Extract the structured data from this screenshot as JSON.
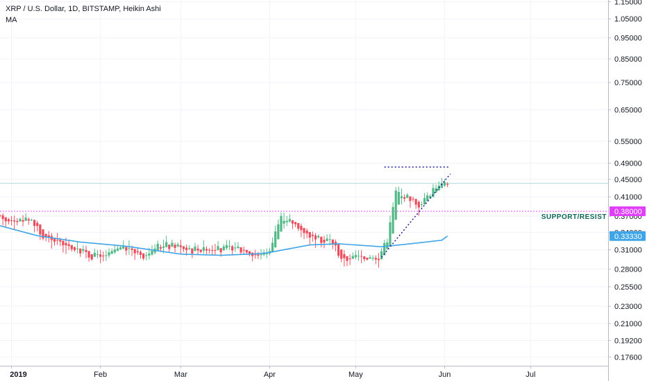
{
  "header": {
    "title": "XRP / U.S. Dollar, 1D, BITSTAMP, Heikin Ashi",
    "indicator": "MA"
  },
  "colors": {
    "up": "#53b987",
    "down": "#eb4d5c",
    "ma": "#3fa5e6",
    "support": "#e040fb",
    "last_price": "#b2d8d8",
    "triangle": "#1f1a9e",
    "grid": "#f0f3fa",
    "axis_text": "#131722",
    "annotation_text": "#0e6655"
  },
  "chart_data": {
    "type": "candlestick",
    "title": "XRP / U.S. Dollar, 1D, BITSTAMP, Heikin Ashi",
    "indicator": "MA",
    "y_scale": "log",
    "ylim": [
      0.168,
      1.16
    ],
    "xlim": [
      "2018-12-28",
      "2019-07-28"
    ],
    "y_ticks": [
      "1.15000",
      "1.05000",
      "0.95000",
      "0.85000",
      "0.75000",
      "0.65000",
      "0.55000",
      "0.49000",
      "0.45000",
      "0.41000",
      "0.37000",
      "0.34000",
      "0.31000",
      "0.28000",
      "0.25500",
      "0.23000",
      "0.21000",
      "0.19200",
      "0.17600"
    ],
    "x_ticks": [
      {
        "label": "2019",
        "date": "2019-01-01"
      },
      {
        "label": "Feb",
        "date": "2019-02-01"
      },
      {
        "label": "Mar",
        "date": "2019-03-01"
      },
      {
        "label": "Apr",
        "date": "2019-04-01"
      },
      {
        "label": "May",
        "date": "2019-05-01"
      },
      {
        "label": "Jun",
        "date": "2019-06-01"
      },
      {
        "label": "Jul",
        "date": "2019-07-01"
      }
    ],
    "anchors": [
      {
        "date": "2018-12-28",
        "price": 0.365
      },
      {
        "date": "2019-01-03",
        "price": 0.362
      },
      {
        "date": "2019-01-08",
        "price": 0.365
      },
      {
        "date": "2019-01-11",
        "price": 0.335
      },
      {
        "date": "2019-01-20",
        "price": 0.318
      },
      {
        "date": "2019-01-28",
        "price": 0.303
      },
      {
        "date": "2019-02-02",
        "price": 0.298
      },
      {
        "date": "2019-02-09",
        "price": 0.313
      },
      {
        "date": "2019-02-16",
        "price": 0.302
      },
      {
        "date": "2019-02-24",
        "price": 0.32
      },
      {
        "date": "2019-03-05",
        "price": 0.312
      },
      {
        "date": "2019-03-15",
        "price": 0.312
      },
      {
        "date": "2019-03-24",
        "price": 0.311
      },
      {
        "date": "2019-03-28",
        "price": 0.3
      },
      {
        "date": "2019-04-01",
        "price": 0.31
      },
      {
        "date": "2019-04-05",
        "price": 0.365
      },
      {
        "date": "2019-04-10",
        "price": 0.355
      },
      {
        "date": "2019-04-16",
        "price": 0.33
      },
      {
        "date": "2019-04-19",
        "price": 0.325
      },
      {
        "date": "2019-04-23",
        "price": 0.325
      },
      {
        "date": "2019-04-26",
        "price": 0.295
      },
      {
        "date": "2019-05-01",
        "price": 0.298
      },
      {
        "date": "2019-05-06",
        "price": 0.3
      },
      {
        "date": "2019-05-09",
        "price": 0.297
      },
      {
        "date": "2019-05-12",
        "price": 0.33
      },
      {
        "date": "2019-05-15",
        "price": 0.42
      },
      {
        "date": "2019-05-19",
        "price": 0.41
      },
      {
        "date": "2019-05-23",
        "price": 0.39
      },
      {
        "date": "2019-05-27",
        "price": 0.42
      },
      {
        "date": "2019-05-30",
        "price": 0.44
      },
      {
        "date": "2019-06-02",
        "price": 0.445
      }
    ],
    "series": [
      {
        "name": "MA",
        "type": "line",
        "points": [
          {
            "date": "2018-12-28",
            "value": 0.352
          },
          {
            "date": "2019-01-10",
            "value": 0.334
          },
          {
            "date": "2019-01-25",
            "value": 0.323
          },
          {
            "date": "2019-02-10",
            "value": 0.316
          },
          {
            "date": "2019-03-01",
            "value": 0.303
          },
          {
            "date": "2019-03-15",
            "value": 0.301
          },
          {
            "date": "2019-03-30",
            "value": 0.304
          },
          {
            "date": "2019-04-15",
            "value": 0.318
          },
          {
            "date": "2019-04-25",
            "value": 0.32
          },
          {
            "date": "2019-05-10",
            "value": 0.315
          },
          {
            "date": "2019-05-20",
            "value": 0.32
          },
          {
            "date": "2019-05-31",
            "value": 0.326
          },
          {
            "date": "2019-06-02",
            "value": 0.3333
          }
        ]
      }
    ],
    "horizontal_lines": [
      {
        "name": "SUPPORT/RESIST",
        "value": 0.38,
        "label": "0.38000"
      },
      {
        "name": "last price",
        "value": 0.4405
      }
    ],
    "price_labels": [
      {
        "value": 0.38,
        "label": "0.38000"
      },
      {
        "value": 0.3333,
        "label": "0.33330"
      }
    ],
    "annotations": [
      {
        "text": "SUPPORT/RESIST",
        "value": 0.38
      }
    ],
    "triangle": {
      "top": {
        "start": "2019-05-11",
        "end": "2019-06-03",
        "value": 0.48
      },
      "bottom": {
        "start": "2019-05-10",
        "end": "2019-06-03",
        "value_start": 0.298,
        "value_end": 0.463
      }
    }
  }
}
